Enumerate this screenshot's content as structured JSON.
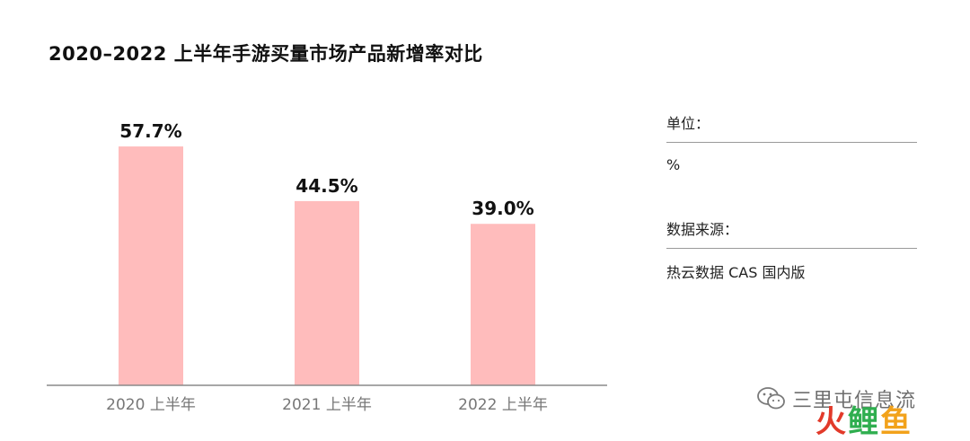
{
  "chart_data": {
    "type": "bar",
    "title": "2020–2022 上半年手游买量市场产品新增率对比",
    "categories": [
      "2020 上半年",
      "2021 上半年",
      "2022 上半年"
    ],
    "values": [
      57.7,
      44.5,
      39.0
    ],
    "data_labels": [
      "57.7%",
      "44.5%",
      "39.0%"
    ],
    "ylim": [
      0,
      62.7
    ],
    "grid": false,
    "bar_color": "#ffbcbc",
    "axis_color": "#8a8a8a"
  },
  "info": {
    "unit_label": "单位：",
    "unit_value": "%",
    "source_label": "数据来源：",
    "source_value": "热云数据 CAS 国内版"
  },
  "watermark": {
    "text": "三里屯信息流",
    "logo_part1": "火",
    "logo_part2": "鲤",
    "logo_part3": "鱼",
    "icon": "wechat-icon"
  }
}
